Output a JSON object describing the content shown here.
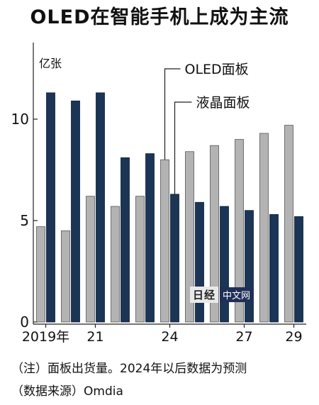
{
  "title": "OLED在智能手机上成为主流",
  "notes": {
    "note1": "（注）面板出货量。2024年以后数据为预测",
    "note2": "（数据来源）Omdia"
  },
  "watermark": {
    "logo_text": "日经",
    "box_text": "中文网"
  },
  "chart_data": {
    "type": "bar",
    "unit_label": "亿张",
    "categories": [
      "2019",
      "2020",
      "2021",
      "2022",
      "2023",
      "2024",
      "2025",
      "2026",
      "2027",
      "2028",
      "2029"
    ],
    "x_tick_labels": [
      {
        "category": "2019",
        "label": "2019年"
      },
      {
        "category": "2021",
        "label": "21"
      },
      {
        "category": "2024",
        "label": "24"
      },
      {
        "category": "2027",
        "label": "27"
      },
      {
        "category": "2029",
        "label": "29"
      }
    ],
    "y_ticks": [
      0,
      5,
      10
    ],
    "ylim": [
      0,
      13
    ],
    "grid": false,
    "series": [
      {
        "name": "OLED面板",
        "color": "#b3b3b3",
        "values": [
          4.7,
          4.5,
          6.2,
          5.7,
          6.2,
          8.0,
          8.4,
          8.7,
          9.0,
          9.3,
          9.7
        ]
      },
      {
        "name": "液晶面板",
        "color": "#1b3556",
        "values": [
          11.3,
          10.9,
          11.3,
          8.1,
          8.3,
          6.3,
          5.9,
          5.7,
          5.5,
          5.3,
          5.2
        ]
      }
    ]
  }
}
